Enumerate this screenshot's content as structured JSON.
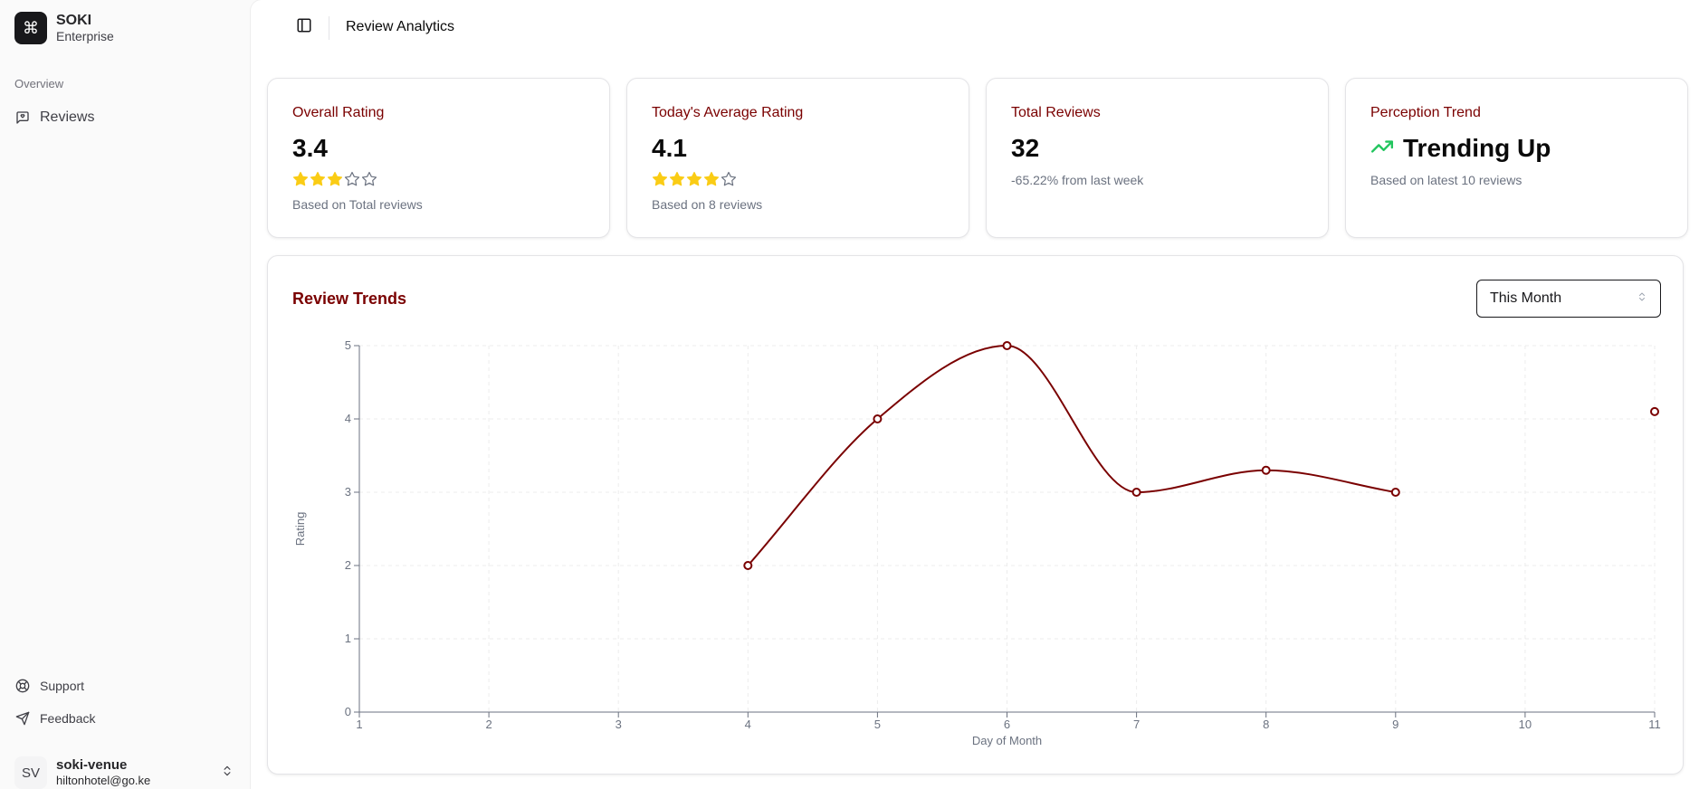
{
  "sidebar": {
    "brand": {
      "name": "SOKI",
      "subtitle": "Enterprise",
      "logo_icon": "command-icon",
      "logo_glyph": "⌘"
    },
    "group_label": "Overview",
    "items": [
      {
        "label": "Reviews",
        "icon": "message-square-heart-icon"
      }
    ],
    "footer_items": [
      {
        "label": "Support",
        "icon": "life-buoy-icon"
      },
      {
        "label": "Feedback",
        "icon": "send-icon"
      }
    ],
    "user": {
      "initials": "SV",
      "name": "soki-venue",
      "email": "hiltonhotel@go.ke",
      "chevron_icon": "chevrons-up-down-icon"
    }
  },
  "header": {
    "toggle_icon": "panel-left-icon",
    "title": "Review Analytics"
  },
  "stats": [
    {
      "title": "Overall Rating",
      "value": "3.4",
      "stars_filled": 3,
      "stars_total": 5,
      "subtitle": "Based on Total reviews"
    },
    {
      "title": "Today's Average Rating",
      "value": "4.1",
      "stars_filled": 4,
      "stars_total": 5,
      "subtitle": "Based on 8 reviews"
    },
    {
      "title": "Total Reviews",
      "value": "32",
      "subtitle": "-65.22% from last week"
    },
    {
      "title": "Perception Trend",
      "value": "Trending Up",
      "icon": "trending-up-icon",
      "subtitle": "Based on latest 10 reviews"
    }
  ],
  "colors": {
    "accent": "#7a0000",
    "star_filled": "#facc15",
    "star_empty": "#6b7280",
    "trend_up": "#22c55e"
  },
  "chart": {
    "title": "Review Trends",
    "range_select": {
      "value": "This Month",
      "icon": "chevrons-up-down-icon"
    }
  },
  "chart_data": {
    "type": "line",
    "title": "Review Trends",
    "xlabel": "Day of Month",
    "ylabel": "Rating",
    "x_ticks": [
      1,
      2,
      3,
      4,
      5,
      6,
      7,
      8,
      9,
      10,
      11
    ],
    "y_ticks": [
      0,
      1,
      2,
      3,
      4,
      5
    ],
    "xlim": [
      1,
      11
    ],
    "ylim": [
      0,
      5
    ],
    "grid": true,
    "series": [
      {
        "name": "Rating",
        "color": "#7a0000",
        "points": [
          {
            "x": 4,
            "y": 2
          },
          {
            "x": 5,
            "y": 4
          },
          {
            "x": 6,
            "y": 5
          },
          {
            "x": 7,
            "y": 3
          },
          {
            "x": 8,
            "y": 3.3
          },
          {
            "x": 9,
            "y": 3
          },
          {
            "x": 11,
            "y": 4.1
          }
        ]
      }
    ]
  }
}
